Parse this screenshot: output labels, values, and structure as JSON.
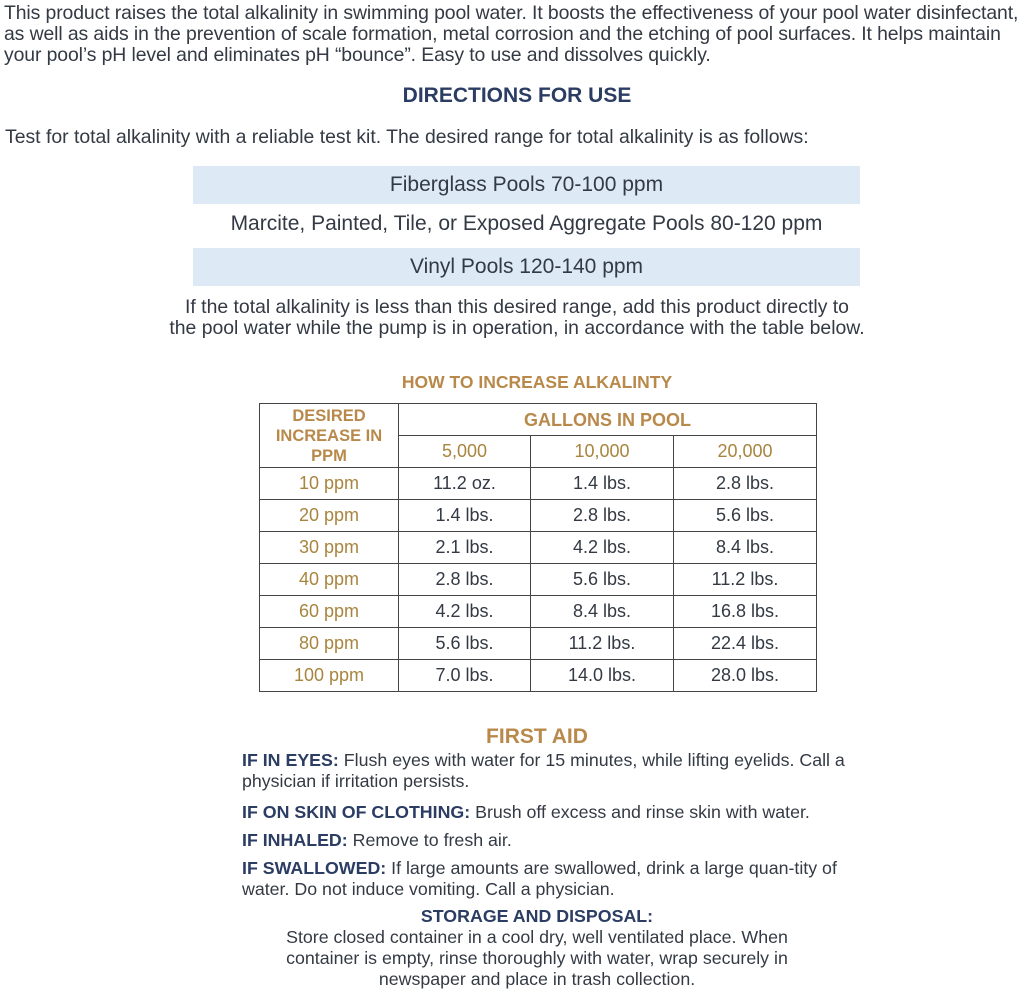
{
  "intro": "This product raises the total alkalinity in swimming pool water. It boosts the effectiveness of your pool water disinfectant, as well as aids in the prevention of scale formation, metal corrosion and the etching of pool surfaces. It helps maintain your pool’s pH level and eliminates pH “bounce”.  Easy to use and dissolves quickly.",
  "directions": {
    "title": "DIRECTIONS FOR USE",
    "test": "Test for total alkalinity with a reliable test kit. The desired range for total alkalinity is as follows:",
    "ranges": [
      "Fiberglass Pools  70-100 ppm",
      "Marcite, Painted, Tile, or Exposed Aggregate Pools  80-120 ppm",
      "Vinyl Pools  120-140 ppm"
    ],
    "para_line1": "If the total alkalinity is less than this desired range, add this product directly to",
    "para_line2": "the pool water while the pump is in operation, in accordance with the table below."
  },
  "table": {
    "title": "HOW TO INCREASE ALKALINTY",
    "row_header": "DESIRED INCREASE IN PPM",
    "col_group": "GALLONS IN POOL",
    "columns": [
      "5,000",
      "10,000",
      "20,000"
    ],
    "rows": [
      [
        "10 ppm",
        "11.2 oz.",
        "1.4 lbs.",
        "2.8 lbs."
      ],
      [
        "20 ppm",
        "1.4 lbs.",
        "2.8 lbs.",
        "5.6 lbs."
      ],
      [
        "30 ppm",
        "2.1 lbs.",
        "4.2 lbs.",
        "8.4 lbs."
      ],
      [
        "40 ppm",
        "2.8 lbs.",
        "5.6 lbs.",
        "11.2 lbs."
      ],
      [
        "60 ppm",
        "4.2 lbs.",
        "8.4 lbs.",
        "16.8 lbs."
      ],
      [
        "80 ppm",
        "5.6 lbs.",
        "11.2 lbs.",
        "22.4 lbs."
      ],
      [
        "100 ppm",
        "7.0 lbs.",
        "14.0 lbs.",
        "28.0 lbs."
      ]
    ]
  },
  "first_aid": {
    "title": "FIRST AID",
    "items": [
      {
        "label": "IF IN EYES:",
        "text": " Flush eyes with water for 15 minutes, while lifting eyelids. Call a physician if irritation persists."
      },
      {
        "label": "IF ON SKIN OF CLOTHING:",
        "text": " Brush off excess and rinse skin with water."
      },
      {
        "label": "IF INHALED:",
        "text": " Remove to fresh air."
      },
      {
        "label": "IF SWALLOWED:",
        "text": " If large amounts are swallowed, drink a large quan-tity of water. Do not induce vomiting. Call a physician."
      }
    ]
  },
  "storage": {
    "title": "STORAGE AND DISPOSAL:",
    "text": "Store closed container in a cool dry, well ventilated place. When container is empty, rinse thoroughly with water, wrap securely in newspaper and place in trash collection."
  }
}
